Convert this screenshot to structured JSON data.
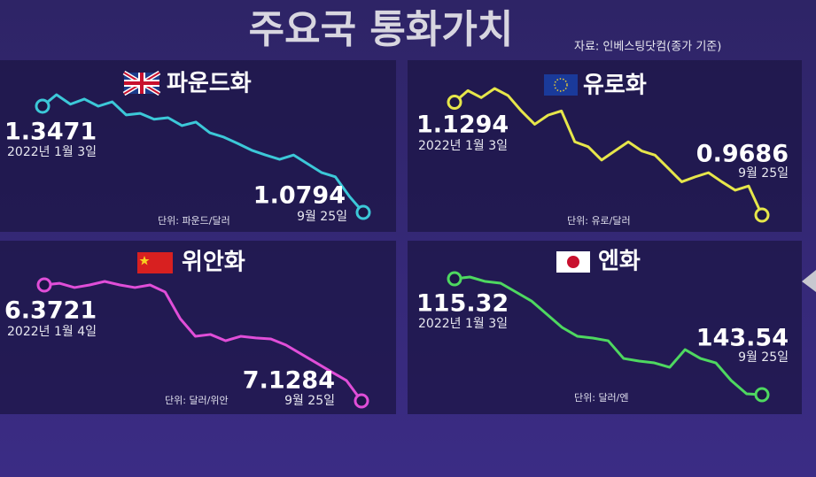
{
  "title": "주요국 통화가치",
  "source": "자료: 인베스팅닷컴(종가 기준)",
  "chart_data": [
    {
      "type": "line",
      "title": "파운드화",
      "unit": "단위: 파운드/달러",
      "color": "#3cc8d8",
      "inverted": false,
      "x": [
        "2022년 1월 3일",
        null,
        null,
        null,
        null,
        null,
        null,
        null,
        null,
        null,
        null,
        null,
        null,
        null,
        null,
        null,
        null,
        null,
        null,
        null,
        null,
        null,
        null,
        "9월 25일"
      ],
      "values": [
        1.3471,
        1.376,
        1.352,
        1.365,
        1.347,
        1.358,
        1.325,
        1.329,
        1.314,
        1.318,
        1.298,
        1.307,
        1.28,
        1.269,
        1.253,
        1.236,
        1.224,
        1.213,
        1.224,
        1.202,
        1.18,
        1.169,
        1.12,
        1.0794
      ]
    },
    {
      "type": "line",
      "title": "유로화",
      "unit": "단위: 유로/달러",
      "color": "#e6e64a",
      "inverted": false,
      "x": [
        "2022년 1월 3일",
        null,
        null,
        null,
        null,
        null,
        null,
        null,
        null,
        null,
        null,
        null,
        null,
        null,
        null,
        null,
        null,
        null,
        null,
        null,
        null,
        null,
        null,
        "9월 25일"
      ],
      "values": [
        1.1294,
        1.146,
        1.136,
        1.149,
        1.139,
        1.117,
        1.098,
        1.111,
        1.117,
        1.073,
        1.066,
        1.047,
        1.06,
        1.073,
        1.06,
        1.054,
        1.035,
        1.016,
        1.023,
        1.029,
        1.016,
        1.004,
        1.01,
        0.9686
      ]
    },
    {
      "type": "line",
      "title": "위안화",
      "unit": "단위: 달러/위안",
      "color": "#e04ed8",
      "inverted": true,
      "x": [
        "2022년 1월 4일",
        null,
        null,
        null,
        null,
        null,
        null,
        null,
        null,
        null,
        null,
        null,
        null,
        null,
        null,
        null,
        null,
        null,
        null,
        null,
        null,
        "9월 25일"
      ],
      "values": [
        6.3721,
        6.361,
        6.389,
        6.372,
        6.349,
        6.372,
        6.389,
        6.372,
        6.418,
        6.592,
        6.707,
        6.695,
        6.736,
        6.707,
        6.718,
        6.724,
        6.764,
        6.822,
        6.88,
        6.938,
        6.995,
        7.1284
      ]
    },
    {
      "type": "line",
      "title": "엔화",
      "unit": "단위: 달러/엔",
      "color": "#4ed860",
      "inverted": true,
      "x": [
        "2022년 1월 3일",
        null,
        null,
        null,
        null,
        null,
        null,
        null,
        null,
        null,
        null,
        null,
        null,
        null,
        null,
        null,
        null,
        null,
        null,
        null,
        "9월 25일"
      ],
      "values": [
        115.32,
        114.89,
        115.97,
        116.4,
        118.55,
        120.71,
        123.94,
        127.17,
        129.33,
        129.76,
        130.41,
        134.72,
        135.36,
        135.79,
        136.87,
        132.56,
        134.72,
        135.79,
        140.1,
        143.32,
        143.54
      ]
    }
  ]
}
